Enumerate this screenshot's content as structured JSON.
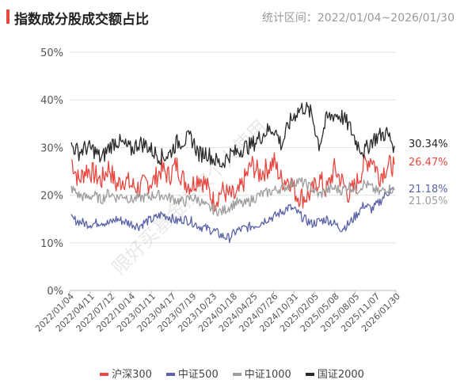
{
  "header": {
    "title": "指数成分股成交额占比",
    "range": "统计区间：2022/01/04~2026/01/30"
  },
  "watermark": "限好买基金授权个人使用",
  "colors": {
    "hs300": "#e8473f",
    "zz500": "#5b63a8",
    "zz1000": "#9e9e9e",
    "gz2000": "#2a2a2a",
    "accent": "#e8473f"
  },
  "chart_data": {
    "type": "line",
    "title": "指数成分股成交额占比",
    "xlabel": "",
    "ylabel": "",
    "ylim": [
      0,
      50
    ],
    "y_ticks": [
      "0%",
      "10%",
      "20%",
      "30%",
      "40%",
      "50%"
    ],
    "x_ticks": [
      "2022/01/04",
      "2022/04/11",
      "2022/07/12",
      "2022/10/14",
      "2023/01/11",
      "2023/04/17",
      "2023/07/19",
      "2023/10/23",
      "2024/01/18",
      "2024/04/25",
      "2024/07/26",
      "2024/10/31",
      "2025/02/05",
      "2025/05/08",
      "2025/08/05",
      "2025/11/07",
      "2026/01/30"
    ],
    "grid": true,
    "legend_position": "bottom",
    "series": [
      {
        "name": "沪深300",
        "color": "#e8473f",
        "end_label": "26.47%",
        "values": [
          27.5,
          23.0,
          25.5,
          24.5,
          23.0,
          26.0,
          22.0,
          23.5,
          22.0,
          21.5,
          22.5,
          23.0,
          25.5,
          24.0,
          26.5,
          23.0,
          22.0,
          24.0,
          22.0,
          18.5,
          21.0,
          20.0,
          19.5,
          23.0,
          26.5,
          24.5,
          25.5,
          27.0,
          23.0,
          23.5,
          20.0,
          19.5,
          20.5,
          23.5,
          21.0,
          25.5,
          23.0,
          20.0,
          22.5,
          26.5,
          28.0,
          24.0,
          26.0,
          26.47
        ]
      },
      {
        "name": "中证500",
        "color": "#5b63a8",
        "end_label": "21.18%",
        "values": [
          15.0,
          14.5,
          14.0,
          14.0,
          14.5,
          14.0,
          15.0,
          14.5,
          14.0,
          13.5,
          14.5,
          15.0,
          16.0,
          15.5,
          14.5,
          15.0,
          14.5,
          13.5,
          13.0,
          12.5,
          11.5,
          11.0,
          12.5,
          13.0,
          13.5,
          14.0,
          15.0,
          15.5,
          16.5,
          17.5,
          16.5,
          15.0,
          14.0,
          14.5,
          15.0,
          14.0,
          13.0,
          14.0,
          16.0,
          18.0,
          17.0,
          18.5,
          20.5,
          21.18
        ]
      },
      {
        "name": "中证1000",
        "color": "#9e9e9e",
        "end_label": "21.05%",
        "values": [
          21.5,
          20.0,
          19.5,
          20.0,
          19.0,
          20.5,
          19.5,
          20.0,
          19.0,
          19.5,
          19.5,
          20.0,
          20.0,
          19.5,
          19.0,
          18.5,
          19.5,
          19.0,
          17.5,
          17.0,
          16.5,
          17.5,
          18.5,
          18.0,
          19.0,
          20.0,
          20.5,
          21.0,
          21.5,
          22.0,
          23.0,
          22.5,
          21.5,
          20.0,
          21.0,
          21.5,
          21.0,
          22.0,
          21.0,
          22.5,
          21.5,
          20.5,
          21.5,
          21.05
        ]
      },
      {
        "name": "国证2000",
        "color": "#2a2a2a",
        "end_label": "30.34%",
        "values": [
          30.5,
          29.0,
          30.0,
          29.5,
          27.5,
          30.0,
          31.5,
          30.5,
          29.5,
          31.0,
          30.5,
          29.0,
          28.0,
          28.5,
          31.0,
          31.5,
          32.0,
          28.5,
          29.0,
          27.5,
          26.5,
          28.5,
          29.0,
          30.0,
          30.5,
          32.0,
          33.5,
          34.0,
          30.5,
          35.0,
          37.5,
          38.5,
          37.0,
          30.5,
          36.0,
          37.0,
          36.5,
          34.5,
          31.0,
          29.0,
          31.5,
          32.5,
          33.0,
          30.34
        ]
      }
    ]
  },
  "legend": [
    {
      "label": "沪深300",
      "color": "#e8473f"
    },
    {
      "label": "中证500",
      "color": "#5b63a8"
    },
    {
      "label": "中证1000",
      "color": "#9e9e9e"
    },
    {
      "label": "国证2000",
      "color": "#2a2a2a"
    }
  ]
}
